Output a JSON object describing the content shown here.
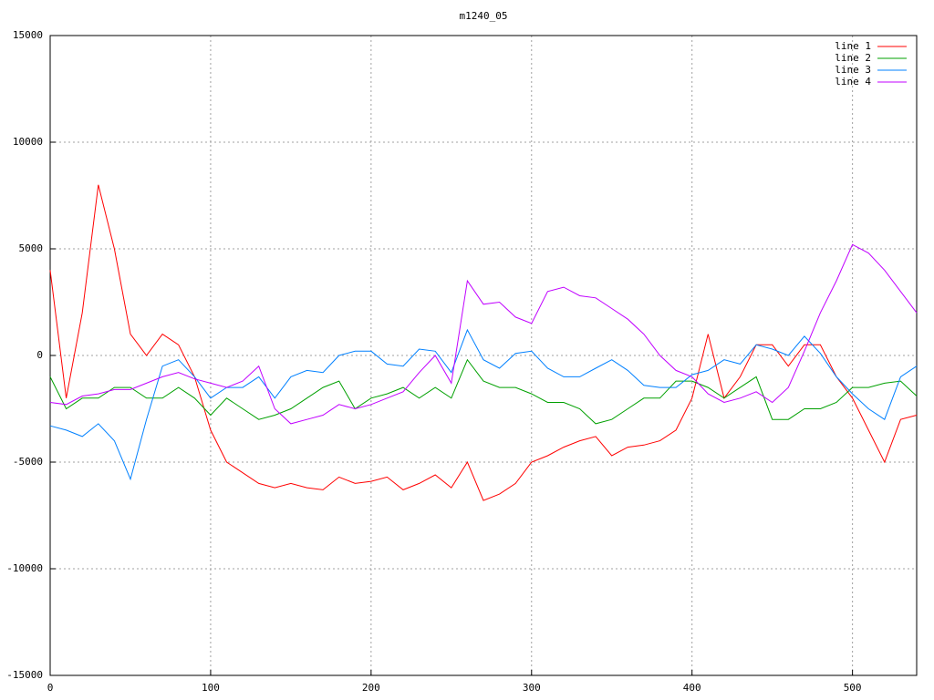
{
  "chart_data": {
    "type": "line",
    "title": "m1240_05",
    "x": [
      0,
      10,
      20,
      30,
      40,
      50,
      60,
      70,
      80,
      90,
      100,
      110,
      120,
      130,
      140,
      150,
      160,
      170,
      180,
      190,
      200,
      210,
      220,
      230,
      240,
      250,
      260,
      270,
      280,
      290,
      300,
      310,
      320,
      330,
      340,
      350,
      360,
      370,
      380,
      390,
      400,
      410,
      420,
      430,
      440,
      450,
      460,
      470,
      480,
      490,
      500,
      510,
      520,
      530,
      540
    ],
    "series": [
      {
        "name": "line 1",
        "color": "#ff0000",
        "values": [
          4000,
          -2000,
          2000,
          8000,
          5000,
          1000,
          0,
          1000,
          500,
          -1000,
          -3500,
          -5000,
          -5500,
          -6000,
          -6200,
          -6000,
          -6200,
          -6300,
          -5700,
          -6000,
          -5900,
          -5700,
          -6300,
          -6000,
          -5600,
          -6200,
          -5000,
          -6800,
          -6500,
          -6000,
          -5000,
          -4700,
          -4300,
          -4000,
          -3800,
          -4700,
          -4300,
          -4200,
          -4000,
          -3500,
          -2000,
          1000,
          -2000,
          -1000,
          500,
          500,
          -500,
          500,
          500,
          -1000,
          -2000,
          -3500,
          -5000,
          -3000,
          -2800
        ]
      },
      {
        "name": "line 2",
        "color": "#00a000",
        "values": [
          -1000,
          -2500,
          -2000,
          -2000,
          -1500,
          -1500,
          -2000,
          -2000,
          -1500,
          -2000,
          -2800,
          -2000,
          -2500,
          -3000,
          -2800,
          -2500,
          -2000,
          -1500,
          -1200,
          -2500,
          -2000,
          -1800,
          -1500,
          -2000,
          -1500,
          -2000,
          -200,
          -1200,
          -1500,
          -1500,
          -1800,
          -2200,
          -2200,
          -2500,
          -3200,
          -3000,
          -2500,
          -2000,
          -2000,
          -1200,
          -1200,
          -1500,
          -2000,
          -1500,
          -1000,
          -3000,
          -3000,
          -2500,
          -2500,
          -2200,
          -1500,
          -1500,
          -1300,
          -1200,
          -1900
        ]
      },
      {
        "name": "line 3",
        "color": "#0080ff",
        "values": [
          -3300,
          -3500,
          -3800,
          -3200,
          -4000,
          -5800,
          -3000,
          -500,
          -200,
          -1000,
          -2000,
          -1500,
          -1500,
          -1000,
          -2000,
          -1000,
          -700,
          -800,
          0,
          200,
          200,
          -400,
          -500,
          300,
          200,
          -800,
          1200,
          -200,
          -600,
          100,
          200,
          -600,
          -1000,
          -1000,
          -600,
          -200,
          -700,
          -1400,
          -1500,
          -1500,
          -900,
          -700,
          -200,
          -400,
          500,
          300,
          0,
          900,
          100,
          -1000,
          -1800,
          -2500,
          -3000,
          -1000,
          -500
        ]
      },
      {
        "name": "line 4",
        "color": "#c000ff",
        "values": [
          -2200,
          -2300,
          -1900,
          -1800,
          -1600,
          -1600,
          -1300,
          -1000,
          -800,
          -1100,
          -1300,
          -1500,
          -1200,
          -500,
          -2500,
          -3200,
          -3000,
          -2800,
          -2300,
          -2500,
          -2300,
          -2000,
          -1700,
          -800,
          0,
          -1300,
          3500,
          2400,
          2500,
          1800,
          1500,
          3000,
          3200,
          2800,
          2700,
          2200,
          1700,
          1000,
          0,
          -700,
          -1000,
          -1800,
          -2200,
          -2000,
          -1700,
          -2200,
          -1500,
          200,
          2000,
          3500,
          5200,
          4800,
          4000,
          3000,
          2000
        ]
      }
    ],
    "xlim": [
      0,
      540
    ],
    "xticks": [
      0,
      100,
      200,
      300,
      400,
      500
    ],
    "ylim": [
      -15000,
      15000
    ],
    "yticks": [
      -15000,
      -10000,
      -5000,
      0,
      5000,
      10000,
      15000
    ],
    "grid": true,
    "legend": "top-right"
  }
}
